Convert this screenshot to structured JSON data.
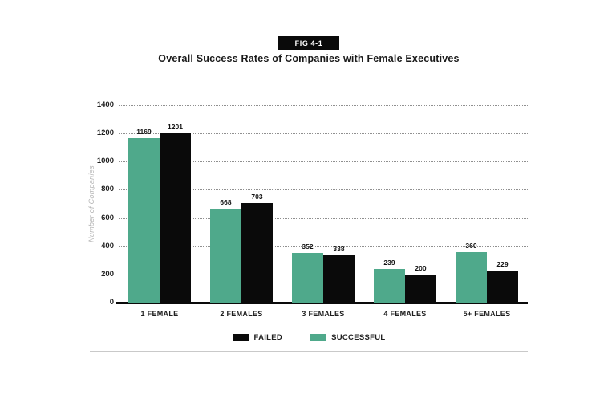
{
  "fig_label": "FIG 4-1",
  "chart_data": {
    "type": "bar",
    "title": "Overall Success Rates of Companies with Female Executives",
    "ylabel": "Number of Companies",
    "xlabel": "",
    "categories": [
      "1 FEMALE",
      "2 FEMALES",
      "3 FEMALES",
      "4 FEMALES",
      "5+ FEMALES"
    ],
    "series": [
      {
        "name": "SUCCESSFUL",
        "color": "#4FA98B",
        "values": [
          1169,
          668,
          352,
          239,
          360
        ]
      },
      {
        "name": "FAILED",
        "color": "#0A0A0A",
        "values": [
          1201,
          703,
          338,
          200,
          229
        ]
      }
    ],
    "bar_value_labels_shown": true,
    "ylim": [
      0,
      1400
    ],
    "ytick_step": 200,
    "grid": "horizontal-dotted",
    "legend_position": "bottom-center",
    "legend_order": [
      "FAILED",
      "SUCCESSFUL"
    ]
  },
  "colors": {
    "successful": "#4FA98B",
    "failed": "#0A0A0A",
    "rule_gray": "#ABABAB",
    "bottom_rule_gray": "#C9C9C9",
    "grid_dot_gray": "#8F8F8F",
    "axis_label_gray": "#B5B5B5"
  }
}
